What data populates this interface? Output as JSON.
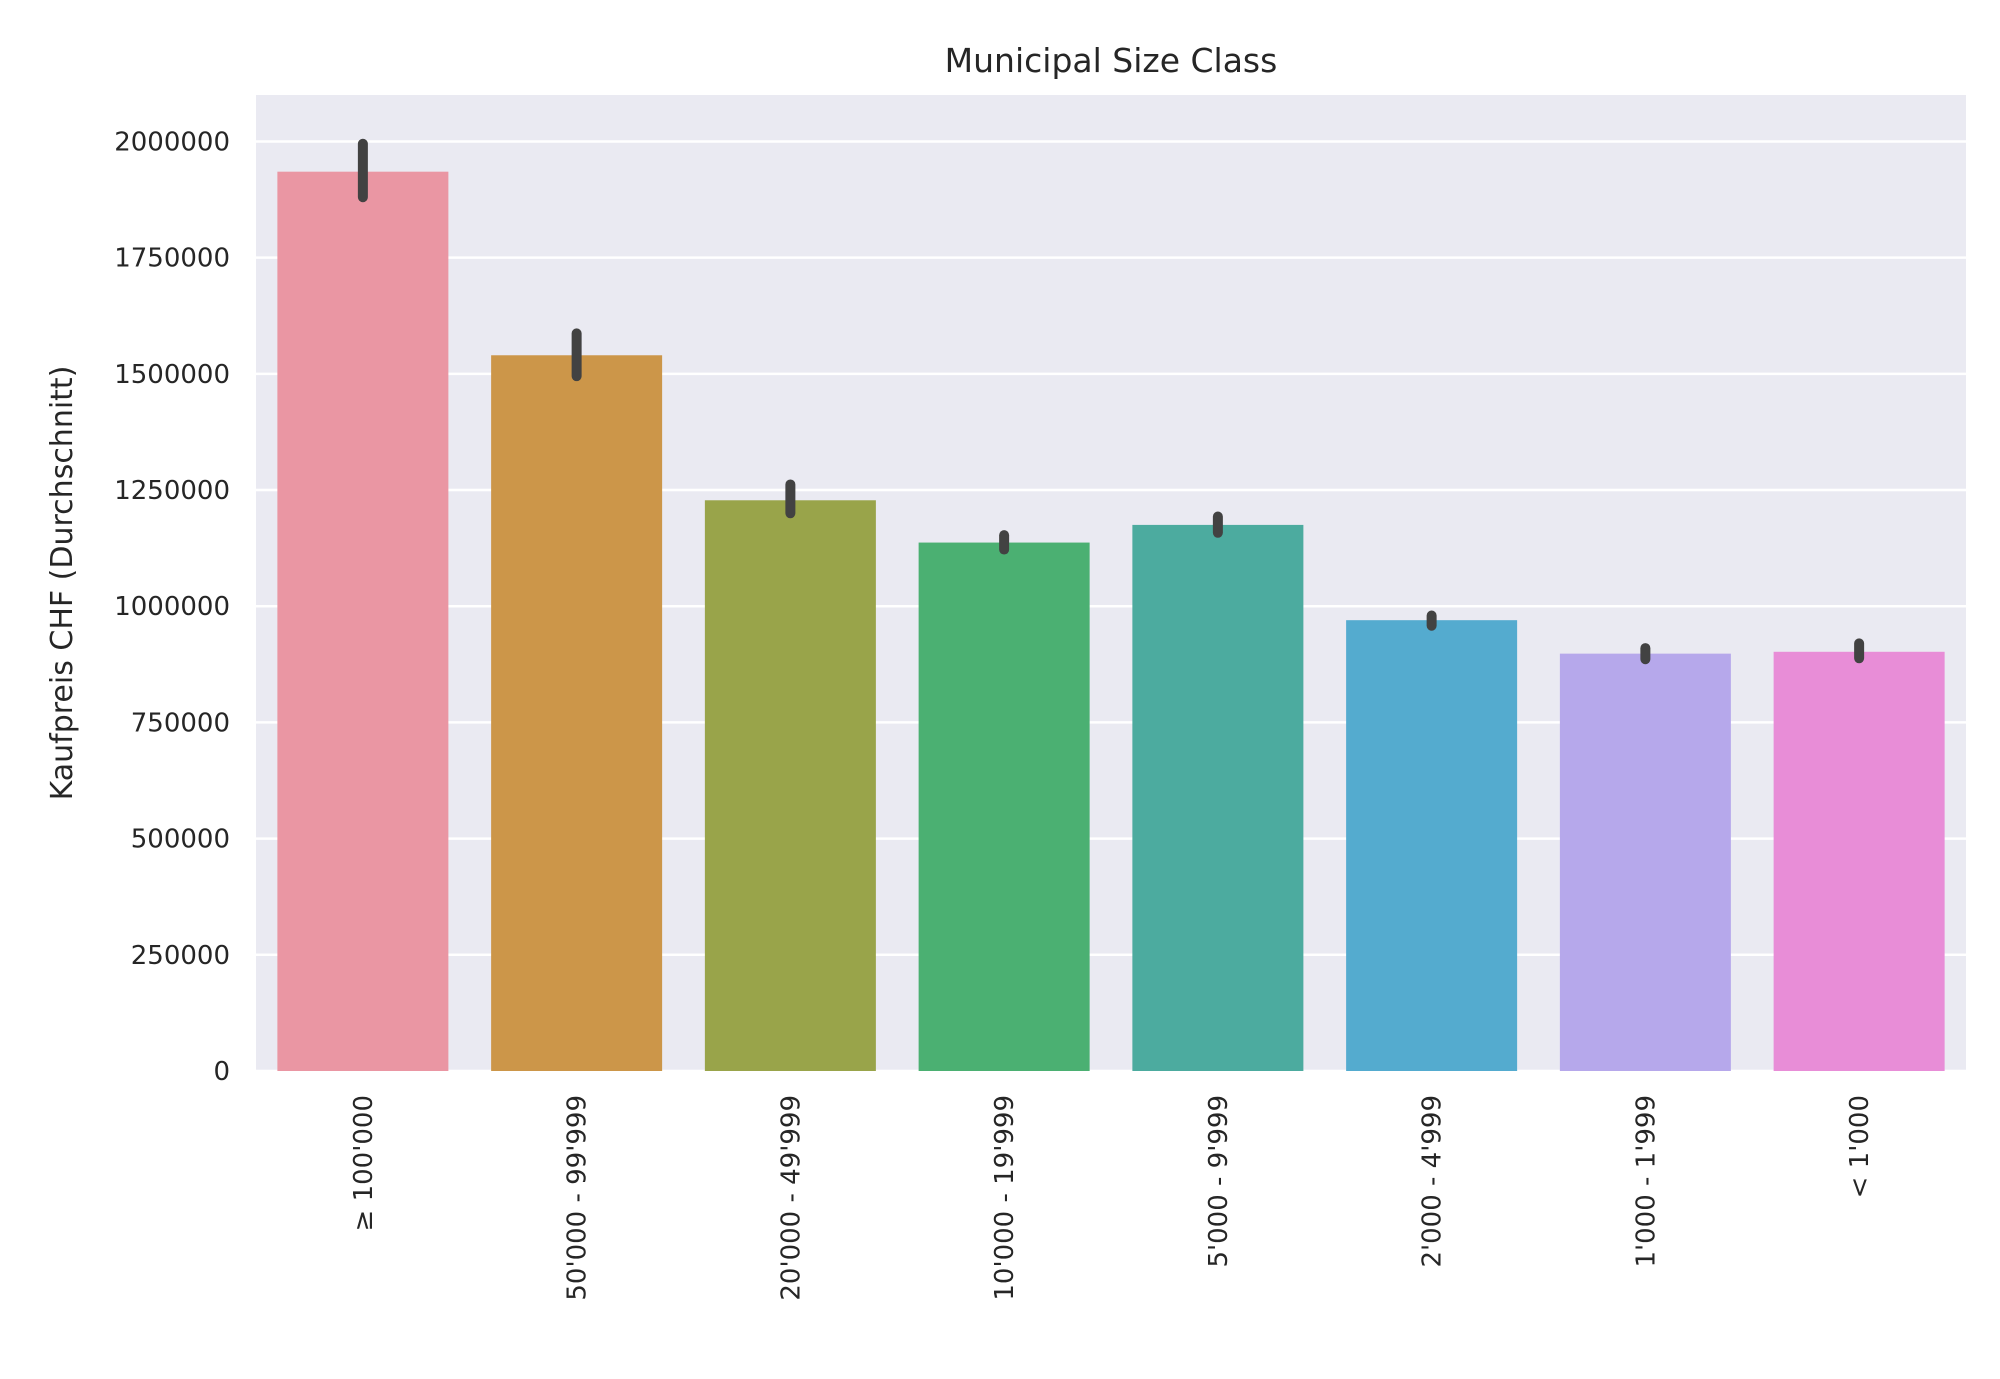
{
  "chart_data": {
    "type": "bar",
    "title": "Municipal Size Class",
    "xlabel": "",
    "ylabel": "Kaufpreis CHF (Durchschnitt)",
    "categories": [
      "≥ 100'000",
      "50'000 - 99'999",
      "20'000 - 49'999",
      "10'000 - 19'999",
      "5'000 - 9'999",
      "2'000 - 4'999",
      "1'000 - 1'999",
      "< 1'000"
    ],
    "values": [
      1935000,
      1540000,
      1228000,
      1137000,
      1175000,
      970000,
      898000,
      902000
    ],
    "error_low": [
      1880000,
      1495000,
      1200000,
      1122000,
      1158000,
      958000,
      886000,
      888000
    ],
    "error_high": [
      1995000,
      1587000,
      1262000,
      1153000,
      1193000,
      980000,
      910000,
      920000
    ],
    "colors": [
      "#ea96a3",
      "#cc9649",
      "#99a44a",
      "#4bb072",
      "#4cab9f",
      "#54abcf",
      "#b6a8eb",
      "#e88dd7"
    ],
    "error_color": "#424242",
    "ylim": [
      0,
      2100000
    ],
    "yticks": [
      0,
      250000,
      500000,
      750000,
      1000000,
      1250000,
      1500000,
      1750000,
      2000000
    ],
    "ytick_labels": [
      "0",
      "250000",
      "500000",
      "750000",
      "1000000",
      "1250000",
      "1500000",
      "1750000",
      "2000000"
    ],
    "grid": true,
    "background": "#eaeaf2",
    "grid_color": "#ffffff"
  }
}
